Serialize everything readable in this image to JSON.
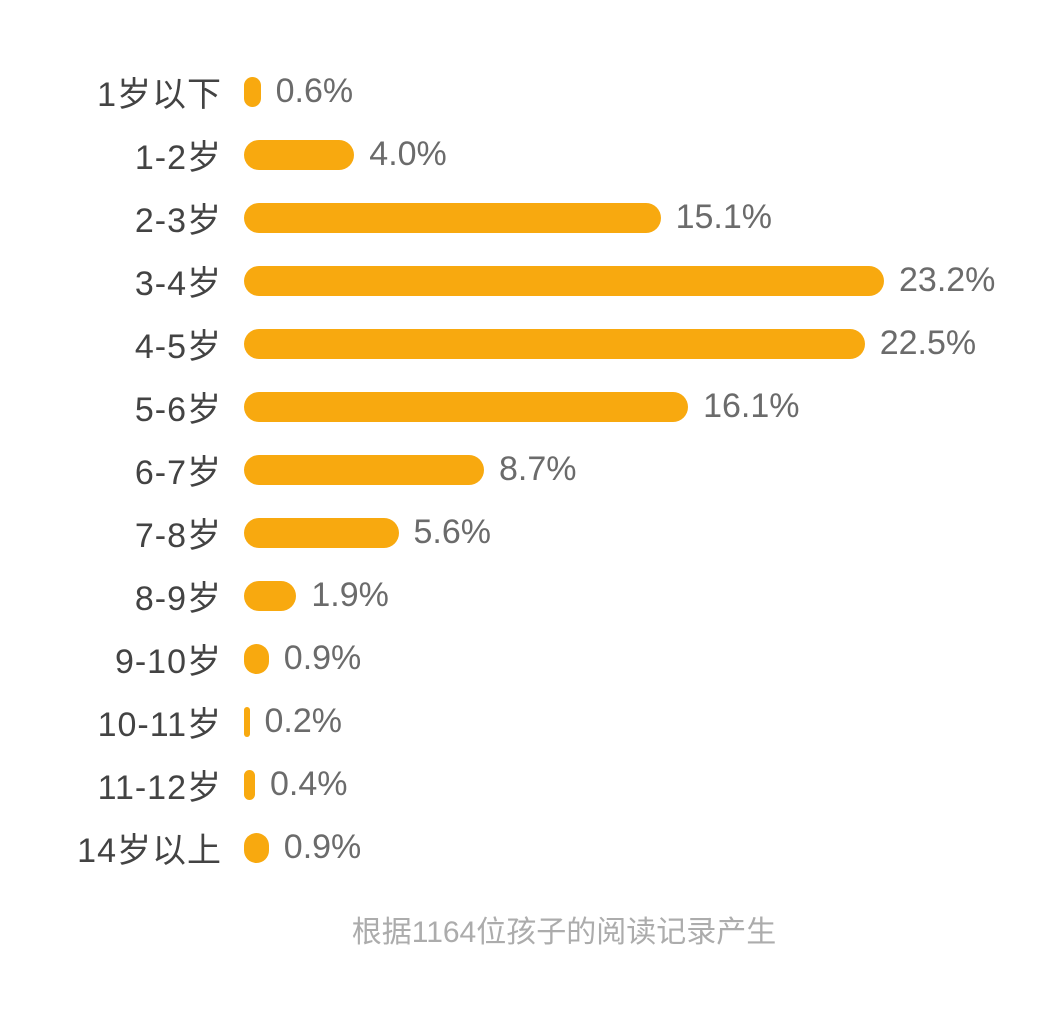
{
  "chart_data": {
    "type": "bar",
    "orientation": "horizontal",
    "title": "",
    "xlabel": "",
    "ylabel": "",
    "grid": false,
    "legend": "none",
    "xlim": [
      0,
      23.2
    ],
    "bar_color": "#F8A90F",
    "categories": [
      "1岁以下",
      "1-2岁",
      "2-3岁",
      "3-4岁",
      "4-5岁",
      "5-6岁",
      "6-7岁",
      "7-8岁",
      "8-9岁",
      "9-10岁",
      "10-11岁",
      "11-12岁",
      "14岁以上"
    ],
    "values": [
      0.6,
      4.0,
      15.1,
      23.2,
      22.5,
      16.1,
      8.7,
      5.6,
      1.9,
      0.9,
      0.2,
      0.4,
      0.9
    ],
    "value_labels": [
      "0.6%",
      "4.0%",
      "15.1%",
      "23.2%",
      "22.5%",
      "16.1%",
      "8.7%",
      "5.6%",
      "1.9%",
      "0.9%",
      "0.2%",
      "0.4%",
      "0.9%"
    ]
  },
  "footer": {
    "note": "根据1164位孩子的阅读记录产生"
  },
  "style": {
    "label_color": "#434343",
    "value_color": "#6B6B6B",
    "note_color": "#ACACAC",
    "background": "#FFFFFF"
  }
}
